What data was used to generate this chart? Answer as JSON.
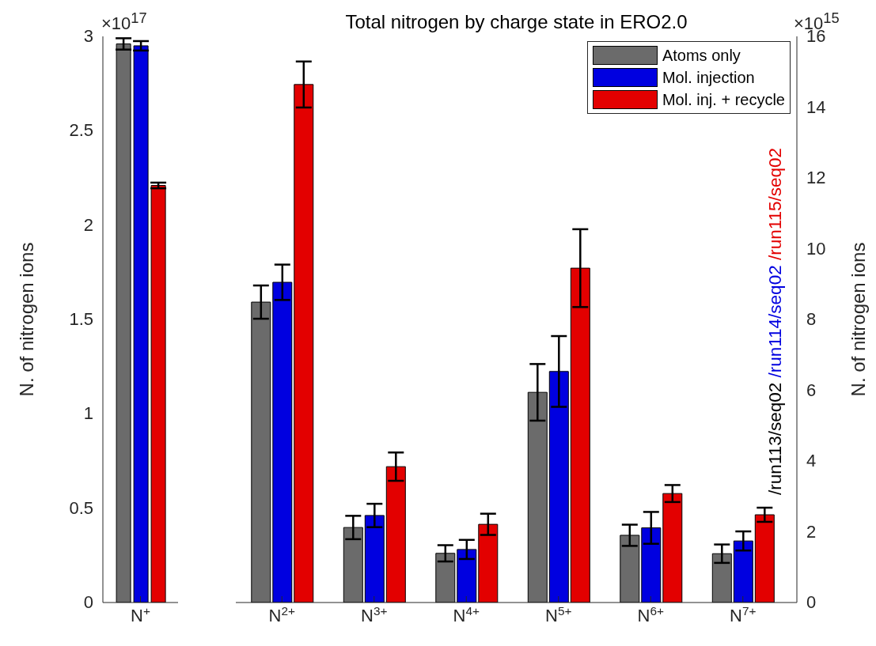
{
  "chart_data": [
    {
      "type": "bar",
      "categories": [
        "N$^{+}$"
      ],
      "ylabel": "N. of nitrogen ions",
      "ylim": [
        0,
        3
      ],
      "yticks": [
        0,
        0.5,
        1,
        1.5,
        2,
        2.5,
        3
      ],
      "legend": false,
      "annotations": [
        "×10$^{17}$"
      ],
      "series": [
        {
          "color": "#6b6b6b",
          "values": [
            2.96
          ],
          "errors": [
            0.03
          ]
        },
        {
          "color": "#0000e0",
          "values": [
            2.95
          ],
          "errors": [
            0.025
          ]
        },
        {
          "color": "#e30000",
          "values": [
            2.21
          ],
          "errors": [
            0.015
          ]
        }
      ]
    },
    {
      "type": "bar",
      "title": "Total nitrogen by charge state in ERO2.0",
      "categories": [
        "N$^{2+}$",
        "N$^{3+}$",
        "N$^{4+}$",
        "N$^{5+}$",
        "N$^{6+}$",
        "N$^{7+}$"
      ],
      "y2label": "N. of nitrogen ions",
      "y2lim": [
        0,
        16
      ],
      "y2ticks": [
        0,
        2,
        4,
        6,
        8,
        10,
        12,
        14,
        16
      ],
      "legend": "top right",
      "annotations": [
        "×10$^{15}$",
        "/run113/seq02",
        "/run114/seq02",
        "/run115/seq02"
      ],
      "series": [
        {
          "name": "Atoms only",
          "color": "#6b6b6b",
          "axis": "y2",
          "values": [
            8.49,
            2.12,
            1.39,
            5.94,
            1.9,
            1.38
          ],
          "errors": [
            0.47,
            0.33,
            0.23,
            0.8,
            0.3,
            0.26
          ]
        },
        {
          "name": "Mol. injection",
          "color": "#0000e0",
          "axis": "y2",
          "values": [
            9.05,
            2.46,
            1.5,
            6.53,
            2.11,
            1.74
          ],
          "errors": [
            0.5,
            0.33,
            0.27,
            1.0,
            0.45,
            0.27
          ]
        },
        {
          "name": "Mol. inj. + recycle",
          "color": "#e30000",
          "axis": "y2",
          "values": [
            14.64,
            3.84,
            2.21,
            9.45,
            3.08,
            2.48
          ],
          "errors": [
            0.65,
            0.4,
            0.3,
            1.1,
            0.24,
            0.2
          ]
        }
      ]
    }
  ]
}
